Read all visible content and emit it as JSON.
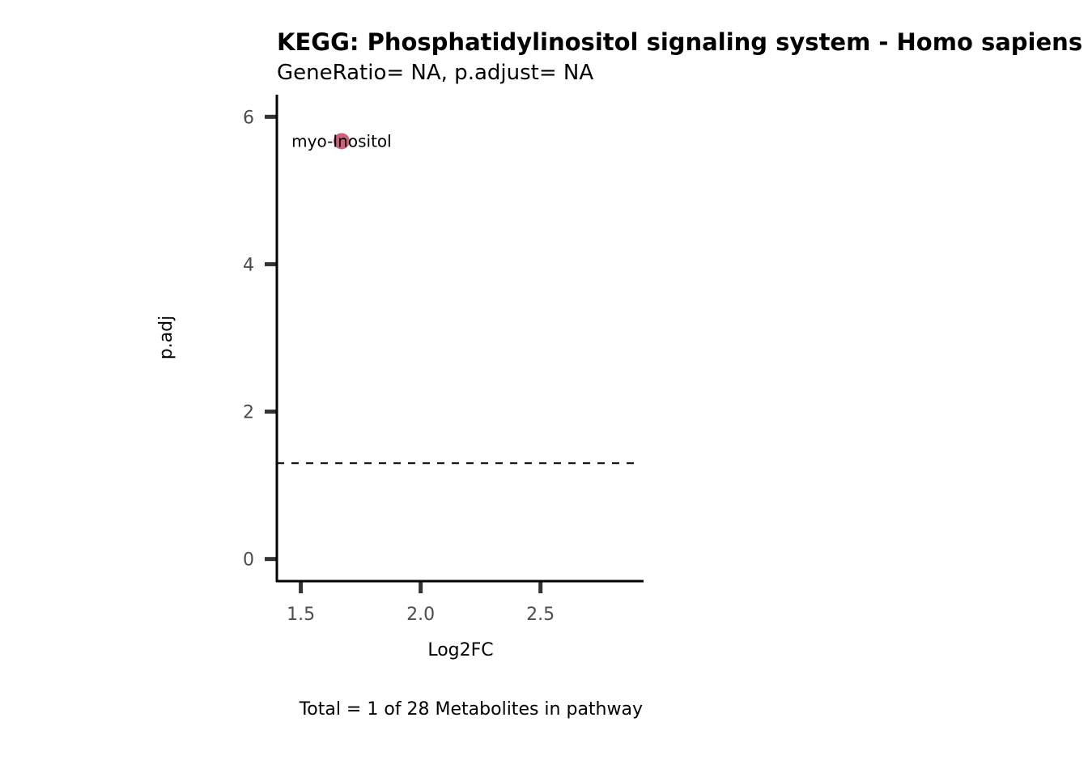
{
  "chart_data": {
    "type": "scatter",
    "title": "KEGG: Phosphatidylinositol signaling system - Homo sapiens (human)",
    "subtitle": "GeneRatio= NA, p.adjust= NA",
    "xlabel": "Log2FC",
    "ylabel": "p.adj",
    "caption": "Total = 1 of 28 Metabolites in pathway",
    "xlim": [
      1.4,
      2.93
    ],
    "ylim": [
      -0.3,
      6.3
    ],
    "x_ticks": [
      1.5,
      2.0,
      2.5
    ],
    "x_tick_labels": [
      "1.5",
      "2.0",
      "2.5"
    ],
    "y_ticks": [
      0,
      2,
      4,
      6
    ],
    "y_tick_labels": [
      "0",
      "2",
      "4",
      "6"
    ],
    "threshold_y": 1.3,
    "grid": false,
    "point_color": "#c9627a",
    "points": [
      {
        "label": "myo-Inositol",
        "x": 1.67,
        "y": 5.67
      }
    ]
  }
}
